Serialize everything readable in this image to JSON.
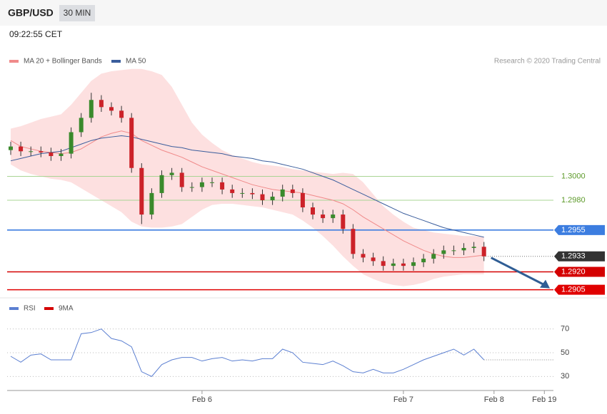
{
  "header": {
    "symbol": "GBP/USD",
    "timeframe": "30 MIN",
    "time": "09:22:55 CET",
    "credit": "Research © 2020 Trading Central"
  },
  "chart_data": [
    {
      "type": "candlestick",
      "up_color": "#3a8a2c",
      "down_color": "#cc2229",
      "open": [
        1.3022,
        1.3025,
        1.3021,
        1.3021,
        1.302,
        1.3017,
        1.3019,
        1.3037,
        1.3049,
        1.3064,
        1.3058,
        1.3055,
        1.3049,
        1.3007,
        1.2968,
        1.2986,
        1.3001,
        1.3003,
        1.2991,
        1.2991,
        1.2995,
        1.2995,
        1.2989,
        1.2986,
        1.2986,
        1.2985,
        1.298,
        1.2983,
        1.2989,
        1.2986,
        1.2974,
        1.2968,
        1.2965,
        1.2968,
        1.2956,
        1.2935,
        1.2932,
        1.2929,
        1.2925,
        1.2927,
        1.2925,
        1.2928,
        1.2931,
        1.2935,
        1.2938,
        1.2938,
        1.294,
        1.2941,
        null,
        null,
        null,
        null,
        null,
        null
      ],
      "high": [
        1.3029,
        1.3029,
        1.3025,
        1.3025,
        1.3024,
        1.3023,
        1.3041,
        1.3053,
        1.307,
        1.3068,
        1.3062,
        1.3059,
        1.3053,
        1.3011,
        1.299,
        1.3005,
        1.3007,
        1.3007,
        1.2995,
        1.2999,
        1.2999,
        1.2999,
        1.2993,
        1.299,
        1.299,
        1.2989,
        1.2987,
        1.2993,
        1.2993,
        1.299,
        1.2978,
        1.2972,
        1.2972,
        1.2972,
        1.296,
        1.2939,
        1.2936,
        1.2933,
        1.2931,
        1.2931,
        1.2932,
        1.2935,
        1.2939,
        1.2942,
        1.2942,
        1.2944,
        1.2945,
        1.2945,
        null,
        null,
        null,
        null,
        null,
        null
      ],
      "low": [
        1.3018,
        1.3017,
        1.3017,
        1.3016,
        1.3013,
        1.3013,
        1.3015,
        1.3033,
        1.3045,
        1.3054,
        1.3051,
        1.3045,
        1.3003,
        1.296,
        1.2964,
        1.2982,
        1.2997,
        1.2987,
        1.2987,
        1.2987,
        1.2991,
        1.2985,
        1.2982,
        1.2982,
        1.2981,
        1.2976,
        1.2976,
        1.2979,
        1.2982,
        1.297,
        1.2964,
        1.2961,
        1.2961,
        1.2952,
        1.2931,
        1.2928,
        1.2925,
        1.2921,
        1.2921,
        1.2921,
        1.2921,
        1.2924,
        1.2927,
        1.2931,
        1.2934,
        1.2934,
        1.2936,
        1.2929,
        null,
        null,
        null,
        null,
        null,
        null
      ],
      "close": [
        1.3025,
        1.3021,
        1.3021,
        1.302,
        1.3017,
        1.3019,
        1.3037,
        1.3049,
        1.3064,
        1.3058,
        1.3055,
        1.3049,
        1.3007,
        1.2968,
        1.2986,
        1.3001,
        1.3003,
        1.2991,
        1.2991,
        1.2995,
        1.2995,
        1.2989,
        1.2986,
        1.2986,
        1.2985,
        1.298,
        1.2983,
        1.2989,
        1.2986,
        1.2974,
        1.2968,
        1.2965,
        1.2968,
        1.2956,
        1.2935,
        1.2932,
        1.2929,
        1.2925,
        1.2927,
        1.2925,
        1.2928,
        1.2931,
        1.2935,
        1.2938,
        1.2938,
        1.294,
        1.2941,
        1.2933,
        null,
        null,
        null,
        null,
        null,
        null
      ],
      "series": [
        {
          "name": "MA 20 + Bollinger Bands",
          "color": "#f08a8a",
          "values": [
            1.303,
            1.3025,
            1.3023,
            1.3021,
            1.302,
            1.3019,
            1.302,
            1.3023,
            1.3028,
            1.3033,
            1.3036,
            1.3038,
            1.3036,
            1.303,
            1.3026,
            1.3022,
            1.3019,
            1.3016,
            1.3012,
            1.3008,
            1.3005,
            1.3002,
            1.2999,
            1.2996,
            1.2993,
            1.2991,
            1.2989,
            1.2988,
            1.2987,
            1.2986,
            1.2984,
            1.2982,
            1.298,
            1.2977,
            1.2972,
            1.2966,
            1.2961,
            1.2956,
            1.2951,
            1.2946,
            1.2942,
            1.2938,
            1.2935,
            1.2933,
            1.2932,
            1.2932,
            1.2933,
            1.2934,
            null,
            null,
            null,
            null,
            null,
            null
          ]
        },
        {
          "name": "MA 50",
          "color": "#3a5d9c",
          "values": [
            1.3013,
            1.3015,
            1.3017,
            1.3019,
            1.302,
            1.3021,
            1.3024,
            1.3027,
            1.303,
            1.3032,
            1.3033,
            1.3034,
            1.3033,
            1.3031,
            1.3029,
            1.3027,
            1.3025,
            1.3024,
            1.3022,
            1.3021,
            1.302,
            1.3019,
            1.3017,
            1.3016,
            1.3015,
            1.3013,
            1.3012,
            1.301,
            1.3008,
            1.3006,
            1.3003,
            1.3,
            1.2997,
            1.2993,
            1.2989,
            1.2985,
            1.2981,
            1.2977,
            1.2973,
            1.2969,
            1.2966,
            1.2963,
            1.296,
            1.2957,
            1.2955,
            1.2953,
            1.2951,
            1.2949,
            null,
            null,
            null,
            null,
            null,
            null
          ]
        }
      ],
      "band_color": "#fde0e0",
      "band_upper": [
        1.304,
        1.3042,
        1.3045,
        1.3048,
        1.305,
        1.3052,
        1.306,
        1.307,
        1.308,
        1.3086,
        1.3088,
        1.3089,
        1.309,
        1.309,
        1.3088,
        1.3085,
        1.3075,
        1.306,
        1.3045,
        1.3035,
        1.3028,
        1.3022,
        1.3018,
        1.3015,
        1.3012,
        1.301,
        1.3009,
        1.3008,
        1.3006,
        1.3005,
        1.3004,
        1.3003,
        1.3002,
        1.3003,
        1.3002,
        1.2995,
        1.2985,
        1.2975,
        1.2968,
        1.2962,
        1.2957,
        1.2955,
        1.2953,
        1.2952,
        1.2951,
        1.295,
        1.295,
        1.2949,
        null,
        null,
        null,
        null,
        null,
        null
      ],
      "band_lower": [
        1.301,
        1.3005,
        1.3002,
        1.3,
        1.2998,
        1.2997,
        1.2995,
        1.299,
        1.2985,
        1.298,
        1.2975,
        1.297,
        1.2962,
        1.2958,
        1.2957,
        1.2957,
        1.2958,
        1.296,
        1.2966,
        1.2972,
        1.2976,
        1.2977,
        1.2977,
        1.2976,
        1.2975,
        1.2974,
        1.2972,
        1.297,
        1.2968,
        1.2963,
        1.2957,
        1.295,
        1.2942,
        1.2933,
        1.2925,
        1.2918,
        1.2914,
        1.2911,
        1.2909,
        1.2908,
        1.2909,
        1.2911,
        1.2914,
        1.2916,
        1.2917,
        1.2918,
        1.2918,
        1.2918,
        null,
        null,
        null,
        null,
        null,
        null
      ],
      "ylim": [
        1.29,
        1.3094
      ],
      "yticks": [
        {
          "value": 1.3,
          "label": "1.3000"
        },
        {
          "value": 1.298,
          "label": "1.2980"
        },
        {
          "value": 1.2955,
          "label": "1.2955"
        },
        {
          "value": 1.2933,
          "label": "1.2933"
        },
        {
          "value": 1.292,
          "label": "1.2920"
        },
        {
          "value": 1.2905,
          "label": "1.2905"
        }
      ],
      "ytick_colors": [
        "#a9d494",
        "#a9d494",
        "#3c7de0",
        "#333333",
        "#d40000",
        "#e00000"
      ],
      "ytick_boxed": [
        false,
        false,
        true,
        true,
        true,
        true
      ]
    },
    {
      "type": "line",
      "categories": [
        null,
        null,
        null,
        null,
        null,
        null,
        null,
        null,
        null,
        null,
        null,
        null,
        null,
        null,
        null,
        null,
        null,
        null,
        null,
        "Feb 6",
        null,
        null,
        null,
        null,
        null,
        null,
        null,
        null,
        null,
        null,
        null,
        null,
        null,
        null,
        null,
        null,
        null,
        null,
        null,
        "Feb 7",
        null,
        null,
        null,
        null,
        null,
        null,
        null,
        null,
        "Feb 8",
        null,
        null,
        null,
        null,
        "Feb 19"
      ],
      "series": [
        {
          "name": "RSI",
          "color": "#5b7fd1",
          "values": [
            47,
            42,
            48,
            49,
            44,
            44,
            44,
            66,
            67,
            70,
            62,
            60,
            55,
            34,
            30,
            40,
            44,
            46,
            46,
            43,
            45,
            46,
            43,
            44,
            43,
            45,
            45,
            53,
            50,
            42,
            41,
            40,
            43,
            39,
            34,
            33,
            36,
            33,
            33,
            36,
            40,
            44,
            47,
            50,
            53,
            48,
            53,
            44,
            null,
            null,
            null,
            null,
            null,
            null
          ]
        },
        {
          "name": "9MA",
          "color": "#d40000"
        }
      ],
      "ylim": [
        20,
        80
      ],
      "yticks": [
        30,
        50,
        70
      ]
    }
  ]
}
